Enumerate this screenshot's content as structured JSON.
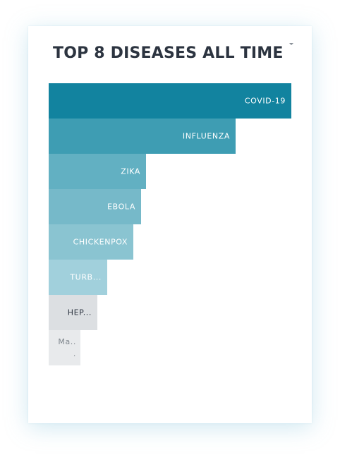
{
  "widget": {
    "title": "TOP 8 DISEASES ALL TIME",
    "menu_icon": "caret-down-icon"
  },
  "chart_data": {
    "type": "bar",
    "orientation": "horizontal",
    "title": "TOP 8 DISEASES ALL TIME",
    "xlabel": "",
    "ylabel": "",
    "grid": false,
    "xlim": [
      0,
      100
    ],
    "categories": [
      "COVID-19",
      "INFLUENZA",
      "ZIKA",
      "EBOLA",
      "CHICKENPOX",
      "TURB...",
      "HEP...",
      "Ma.. ."
    ],
    "values": [
      100,
      77,
      40,
      38,
      35,
      24,
      20,
      13
    ],
    "colors": [
      "#12839f",
      "#3e9db3",
      "#62b0c2",
      "#76b9c9",
      "#8ac4d1",
      "#a1d0dc",
      "#dcdfe2",
      "#e8eaec"
    ],
    "label_colors": [
      "#ffffff",
      "#ffffff",
      "#ffffff",
      "#ffffff",
      "#ffffff",
      "#ffffff",
      "#2c3440",
      "#7f868d"
    ]
  }
}
